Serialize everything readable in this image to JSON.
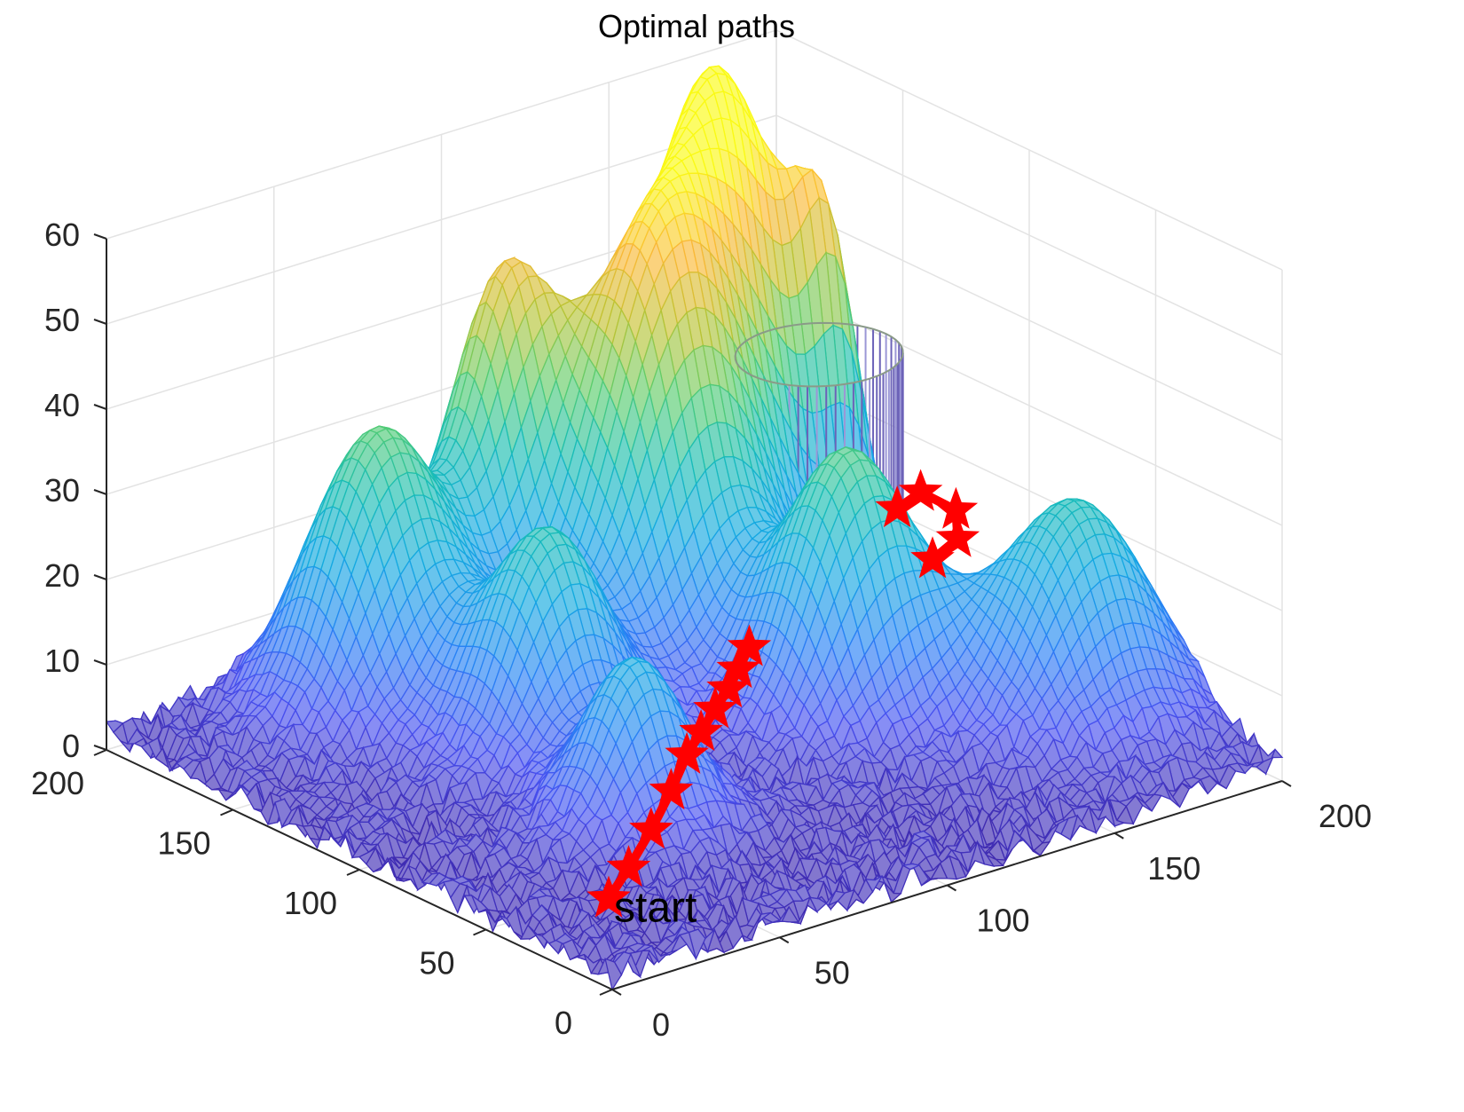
{
  "chart_data": {
    "type": "surface",
    "title": "Optimal paths",
    "xlabel": "",
    "ylabel": "",
    "zlabel": "",
    "xlim": [
      0,
      200
    ],
    "ylim": [
      0,
      200
    ],
    "zlim": [
      0,
      60
    ],
    "xticks": [
      "0",
      "50",
      "100",
      "150",
      "200"
    ],
    "yticks": [
      "0",
      "50",
      "100",
      "150",
      "200"
    ],
    "zticks": [
      "0",
      "10",
      "20",
      "30",
      "40",
      "50",
      "60"
    ],
    "grid": true,
    "colormap": "parula",
    "peaks": [
      {
        "x": 158,
        "y": 166,
        "height": 58,
        "sigma": 17
      },
      {
        "x": 125,
        "y": 147,
        "height": 50,
        "sigma": 19
      },
      {
        "x": 57,
        "y": 168,
        "height": 35,
        "sigma": 18
      },
      {
        "x": 100,
        "y": 177,
        "height": 40,
        "sigma": 13
      },
      {
        "x": 70,
        "y": 118,
        "height": 28,
        "sigma": 16
      },
      {
        "x": 58,
        "y": 68,
        "height": 22,
        "sigma": 14
      },
      {
        "x": 138,
        "y": 90,
        "height": 33,
        "sigma": 17
      },
      {
        "x": 178,
        "y": 53,
        "height": 28,
        "sigma": 19
      },
      {
        "x": 179,
        "y": 151,
        "height": 30,
        "sigma": 8
      }
    ],
    "obstacle_cylinder": {
      "center_x": 175,
      "center_y": 150,
      "radius": 20,
      "z_min": 0,
      "z_max": 32
    },
    "path": [
      [
        8,
        12,
        8
      ],
      [
        20,
        20,
        9
      ],
      [
        32,
        27,
        11
      ],
      [
        44,
        35,
        13
      ],
      [
        54,
        42,
        15
      ],
      [
        62,
        47,
        16
      ],
      [
        70,
        52,
        17
      ],
      [
        77,
        56,
        18
      ],
      [
        83,
        60,
        19
      ],
      [
        90,
        65,
        20
      ],
      [
        150,
        72,
        22
      ],
      [
        156,
        70,
        24
      ],
      [
        160,
        76,
        26
      ],
      [
        154,
        82,
        28
      ],
      [
        150,
        86,
        26
      ]
    ],
    "path_color": "#ff0000",
    "annotations": [
      {
        "text": "start",
        "x": 8,
        "y": 12,
        "z": 8
      }
    ]
  }
}
